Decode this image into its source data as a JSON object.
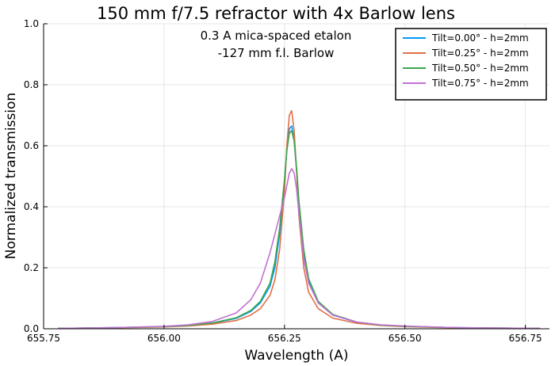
{
  "chart_data": {
    "type": "line",
    "title": "150 mm f/7.5 refractor with 4x Barlow lens",
    "annotations": [
      "0.3 A mica-spaced etalon",
      "-127 mm f.l. Barlow"
    ],
    "xlabel": "Wavelength (A)",
    "ylabel": "Normalized transmission",
    "xlim": [
      655.75,
      656.8
    ],
    "ylim": [
      0.0,
      1.0
    ],
    "xticks": [
      655.75,
      656.0,
      656.25,
      656.5,
      656.75
    ],
    "xtick_labels": [
      "655.75",
      "656.00",
      "656.25",
      "656.50",
      "656.75"
    ],
    "yticks": [
      0.0,
      0.2,
      0.4,
      0.6,
      0.8,
      1.0
    ],
    "ytick_labels": [
      "0.0",
      "0.2",
      "0.4",
      "0.6",
      "0.8",
      "1.0"
    ],
    "grid": true,
    "legend_position": "top-right",
    "x": [
      655.78,
      655.9,
      656.0,
      656.05,
      656.1,
      656.15,
      656.18,
      656.2,
      656.22,
      656.23,
      656.24,
      656.25,
      656.255,
      656.26,
      656.265,
      656.27,
      656.275,
      656.28,
      656.29,
      656.3,
      656.32,
      656.35,
      656.4,
      656.45,
      656.5,
      656.6,
      656.7,
      656.78
    ],
    "series": [
      {
        "name": "Tilt=0.00° - h=2mm",
        "color": "#009AFA",
        "values": [
          0.001,
          0.004,
          0.007,
          0.011,
          0.018,
          0.034,
          0.057,
          0.085,
          0.14,
          0.2,
          0.31,
          0.48,
          0.585,
          0.655,
          0.665,
          0.62,
          0.52,
          0.4,
          0.24,
          0.155,
          0.085,
          0.045,
          0.021,
          0.012,
          0.008,
          0.004,
          0.002,
          0.001
        ]
      },
      {
        "name": "Tilt=0.25° - h=2mm",
        "color": "#E36F47",
        "values": [
          0.001,
          0.003,
          0.006,
          0.009,
          0.015,
          0.027,
          0.045,
          0.066,
          0.11,
          0.16,
          0.26,
          0.45,
          0.6,
          0.7,
          0.715,
          0.65,
          0.52,
          0.37,
          0.2,
          0.12,
          0.066,
          0.035,
          0.018,
          0.011,
          0.007,
          0.003,
          0.002,
          0.001
        ]
      },
      {
        "name": "Tilt=0.50° - h=2mm",
        "color": "#3EA44E",
        "values": [
          0.001,
          0.004,
          0.007,
          0.011,
          0.019,
          0.036,
          0.06,
          0.09,
          0.15,
          0.22,
          0.33,
          0.49,
          0.585,
          0.64,
          0.65,
          0.615,
          0.53,
          0.42,
          0.26,
          0.165,
          0.09,
          0.047,
          0.022,
          0.012,
          0.008,
          0.004,
          0.002,
          0.001
        ]
      },
      {
        "name": "Tilt=0.75° - h=2mm",
        "color": "#C271D2",
        "values": [
          0.001,
          0.004,
          0.008,
          0.013,
          0.024,
          0.052,
          0.095,
          0.15,
          0.25,
          0.31,
          0.37,
          0.43,
          0.47,
          0.51,
          0.525,
          0.51,
          0.46,
          0.38,
          0.23,
          0.15,
          0.085,
          0.045,
          0.022,
          0.013,
          0.009,
          0.004,
          0.002,
          0.001
        ]
      }
    ]
  }
}
